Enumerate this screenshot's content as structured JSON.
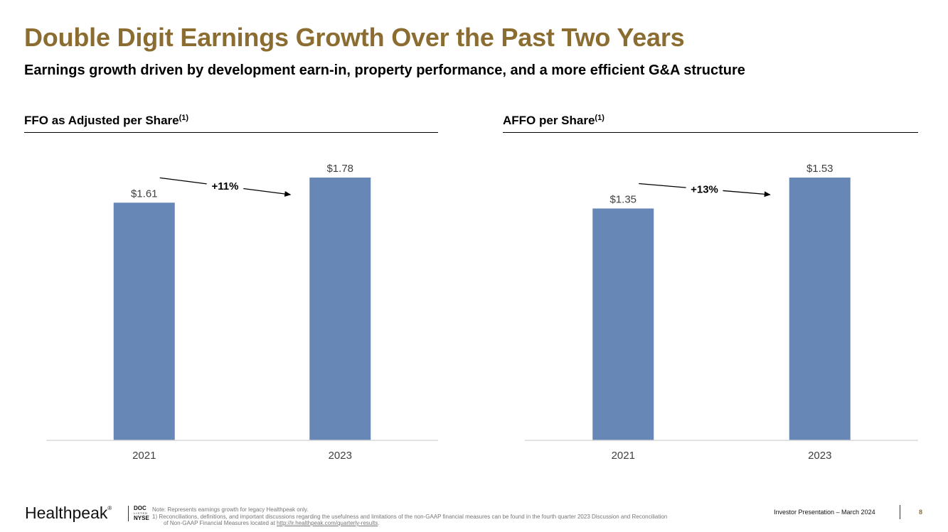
{
  "header": {
    "title": "Double Digit Earnings Growth Over the Past Two Years",
    "subtitle": "Earnings growth driven by development earn-in, property performance, and a more efficient G&A structure"
  },
  "panels": [
    {
      "title": "FFO as Adjusted per Share",
      "sup": "(1)"
    },
    {
      "title": "AFFO per Share",
      "sup": "(1)"
    }
  ],
  "colors": {
    "bar": "#6787B7",
    "title": "#8B6D31",
    "axis": "#D9D9D9",
    "label": "#404040"
  },
  "chart_data": [
    {
      "type": "bar",
      "title": "FFO as Adjusted per Share",
      "categories": [
        "2021",
        "2023"
      ],
      "values": [
        1.61,
        1.78
      ],
      "labels": [
        "$1.61",
        "$1.78"
      ],
      "annotation": "+11%",
      "ylim": [
        0,
        1.78
      ],
      "xlabel": "",
      "ylabel": ""
    },
    {
      "type": "bar",
      "title": "AFFO per Share",
      "categories": [
        "2021",
        "2023"
      ],
      "values": [
        1.35,
        1.53
      ],
      "labels": [
        "$1.35",
        "$1.53"
      ],
      "annotation": "+13%",
      "ylim": [
        0,
        1.53
      ],
      "xlabel": "",
      "ylabel": ""
    }
  ],
  "footer": {
    "logo": "Healthpeak",
    "logo_mark": "®",
    "ticker_top": "DOC",
    "ticker_mid": "LISTED",
    "ticker_bottom": "NYSE",
    "note_line1": "Note: Represents earnings growth for legacy Healthpeak only.",
    "note_line2": "1)      Reconciliations, definitions, and important discussions regarding the usefulness and limitations of the non-GAAP financial measures can be found in the fourth quarter 2023 Discussion and Reconciliation",
    "note_line3_prefix": "of Non-GAAP Financial Measures located at ",
    "note_link": "http://ir.healthpeak.com/quarterly-results",
    "note_line3_suffix": ".",
    "presentation": "Investor Presentation – March 2024",
    "page": "8"
  }
}
